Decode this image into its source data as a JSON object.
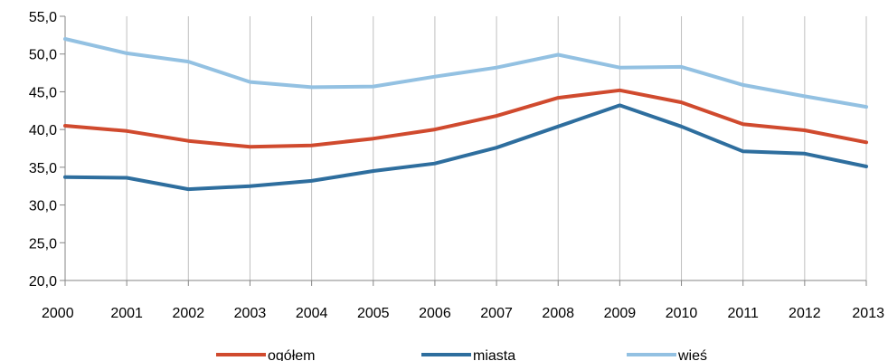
{
  "chart_data": {
    "type": "line",
    "title": "",
    "xlabel": "",
    "ylabel": "",
    "categories": [
      "2000",
      "2001",
      "2002",
      "2003",
      "2004",
      "2005",
      "2006",
      "2007",
      "2008",
      "2009",
      "2010",
      "2011",
      "2012",
      "2013"
    ],
    "y_ticks": [
      "20,0",
      "25,0",
      "30,0",
      "35,0",
      "40,0",
      "45,0",
      "50,0",
      "55,0"
    ],
    "ylim": [
      20,
      55
    ],
    "grid": "vertical",
    "legend_position": "bottom",
    "series": [
      {
        "name": "ogółem",
        "color": "#D04A2E",
        "values": [
          40.5,
          39.8,
          38.5,
          37.7,
          37.9,
          38.8,
          40.0,
          41.8,
          44.2,
          45.2,
          43.6,
          40.7,
          39.9,
          38.3
        ]
      },
      {
        "name": "miasta",
        "color": "#2E6E9E",
        "values": [
          33.7,
          33.6,
          32.1,
          32.5,
          33.2,
          34.5,
          35.5,
          37.6,
          40.4,
          43.2,
          40.4,
          37.1,
          36.8,
          35.1
        ]
      },
      {
        "name": "wieś",
        "color": "#93C1E2",
        "values": [
          52.0,
          50.1,
          49.0,
          46.3,
          45.6,
          45.7,
          47.0,
          48.2,
          49.9,
          48.2,
          48.3,
          45.9,
          44.4,
          43.0
        ]
      }
    ]
  }
}
